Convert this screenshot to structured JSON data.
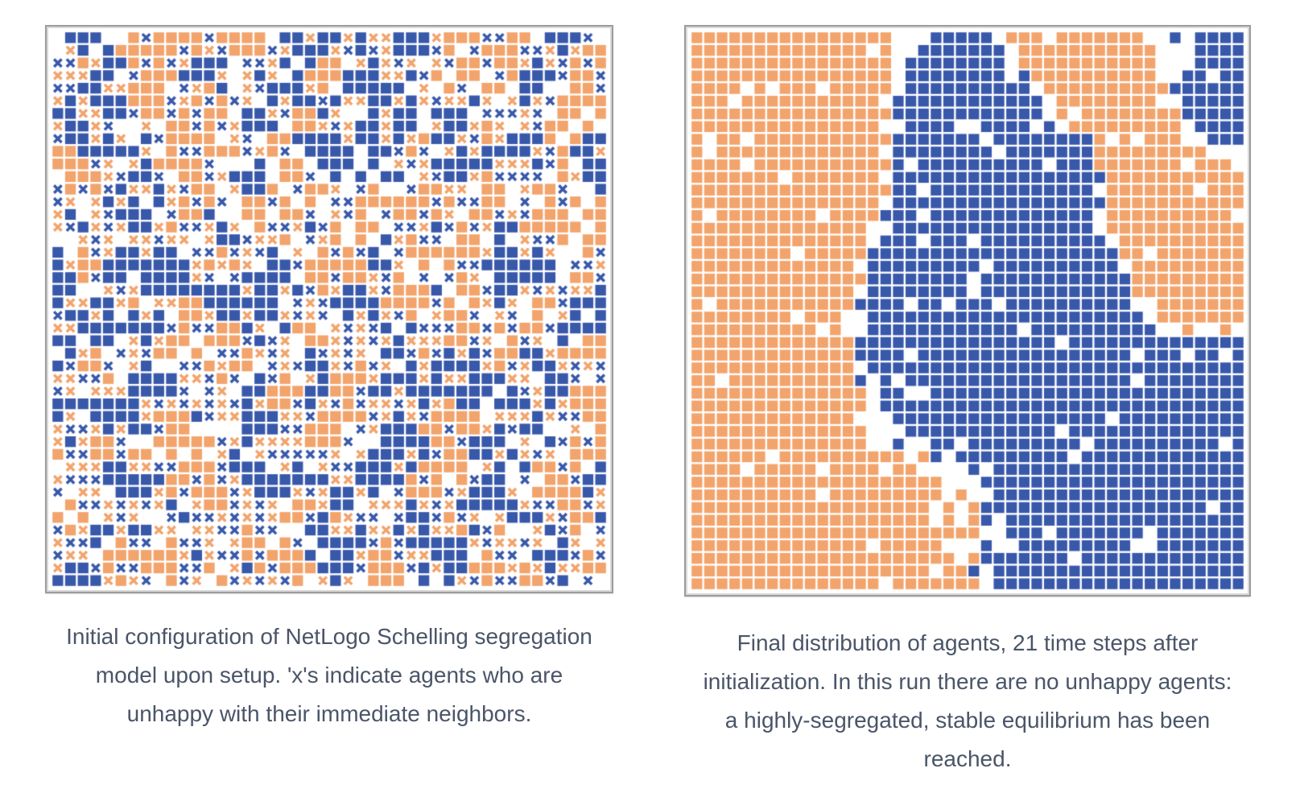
{
  "colors": {
    "orange_agent": "#F2A46C",
    "blue_agent": "#3858AA",
    "empty_patch": "#FFFFFF",
    "caption_text": "#4A5568",
    "frame_border": "#9C9C9C"
  },
  "figures": [
    {
      "state": "initial",
      "grid_size": 44,
      "legend_symbols": {
        "square": "happy agent",
        "x": "unhappy agent"
      },
      "caption": "Initial configuration of NetLogo Schelling segregation model upon setup. 'x's indicate agents who are unhappy with their immediate neighbors."
    },
    {
      "state": "final",
      "grid_size": 44,
      "time_steps": 21,
      "caption": "Final distribution of agents, 21 time steps after initialization. In this run there are no unhappy agents: a highly-segregated, stable equilibrium has been reached."
    }
  ]
}
